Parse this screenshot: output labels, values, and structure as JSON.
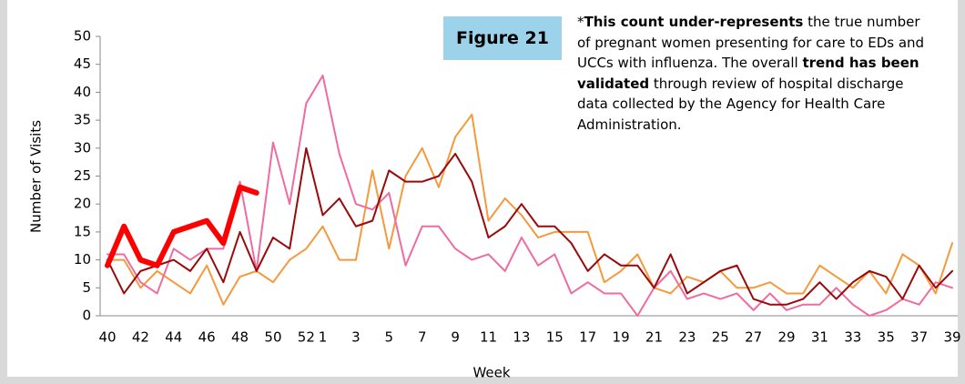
{
  "figure_label": "Figure 21",
  "note": [
    {
      "text": "*",
      "bold": false
    },
    {
      "text": "This count under-represents",
      "bold": true
    },
    {
      "text": " the true number of pregnant women presenting for care to EDs and UCCs with influenza. The overall ",
      "bold": false
    },
    {
      "text": "trend has been validated",
      "bold": true
    },
    {
      "text": " through review of hospital discharge data collected by the Agency for Health Care Administration.",
      "bold": false
    }
  ],
  "chart_data": {
    "type": "line",
    "x_label": "Week",
    "y_label": "Number of Visits",
    "categories": [
      "40",
      null,
      "42",
      null,
      "44",
      null,
      "46",
      null,
      "48",
      null,
      "50",
      null,
      "52",
      "1",
      null,
      "3",
      null,
      "5",
      null,
      "7",
      null,
      "9",
      null,
      "11",
      null,
      "13",
      null,
      "15",
      null,
      "17",
      null,
      "19",
      null,
      "21",
      null,
      "23",
      null,
      "25",
      null,
      "27",
      null,
      "29",
      null,
      "31",
      null,
      "33",
      null,
      "35",
      null,
      "37",
      null,
      "39"
    ],
    "ylim": [
      0,
      50
    ],
    "yticks": [
      0,
      5,
      10,
      15,
      20,
      25,
      30,
      35,
      40,
      45,
      50
    ],
    "grid": false,
    "series": [
      {
        "color": "#f59a3c",
        "width": 2,
        "values": [
          10,
          10,
          5,
          8,
          6,
          4,
          9,
          2,
          7,
          8,
          6,
          10,
          12,
          16,
          10,
          10,
          26,
          12,
          25,
          30,
          23,
          32,
          36,
          17,
          21,
          18,
          14,
          15,
          15,
          15,
          6,
          8,
          11,
          5,
          4,
          7,
          6,
          8,
          5,
          5,
          6,
          4,
          4,
          9,
          7,
          5,
          8,
          4,
          11,
          9,
          4,
          13
        ]
      },
      {
        "color": "#ef6ba0",
        "width": 2,
        "values": [
          11,
          11,
          6,
          4,
          12,
          10,
          12,
          12,
          24,
          8,
          31,
          20,
          38,
          43,
          29,
          20,
          19,
          22,
          9,
          16,
          16,
          12,
          10,
          11,
          8,
          14,
          9,
          11,
          4,
          6,
          4,
          4,
          0,
          5,
          8,
          3,
          4,
          3,
          4,
          1,
          4,
          1,
          2,
          2,
          5,
          2,
          0,
          1,
          3,
          2,
          6,
          5
        ]
      },
      {
        "color": "#9a0a0a",
        "width": 2,
        "values": [
          10,
          4,
          8,
          9,
          10,
          8,
          12,
          6,
          15,
          8,
          14,
          12,
          30,
          18,
          21,
          16,
          17,
          26,
          24,
          24,
          25,
          29,
          24,
          14,
          16,
          20,
          16,
          16,
          13,
          8,
          11,
          9,
          9,
          5,
          11,
          4,
          6,
          8,
          9,
          3,
          2,
          2,
          3,
          6,
          3,
          6,
          8,
          7,
          3,
          9,
          5,
          8
        ]
      },
      {
        "color": "#ff0000",
        "width": 6,
        "values": [
          9,
          16,
          10,
          9,
          15,
          16,
          17,
          13,
          23,
          22,
          null,
          null,
          null,
          null,
          null,
          null,
          null,
          null,
          null,
          null,
          null,
          null,
          null,
          null,
          null,
          null,
          null,
          null,
          null,
          null,
          null,
          null,
          null,
          null,
          null,
          null,
          null,
          null,
          null,
          null,
          null,
          null,
          null,
          null,
          null,
          null,
          null,
          null,
          null,
          null,
          null,
          null
        ]
      }
    ]
  }
}
